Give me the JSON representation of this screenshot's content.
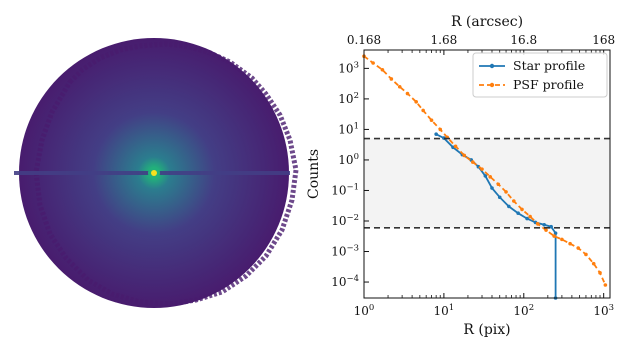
{
  "chart_data": [
    {
      "type": "image",
      "title": "",
      "colormap": "viridis",
      "colors": {
        "outer": "#481c6e",
        "mid": "#433e85",
        "inner": "#2b7d8e",
        "core": "#22b07b",
        "peak": "#f5e11e"
      }
    },
    {
      "type": "line",
      "title": "",
      "xlabel": "R (pix)",
      "ylabel": "Counts",
      "x2label": "R (arcsec)",
      "xscale": "log",
      "yscale": "log",
      "xlim": [
        1,
        1200
      ],
      "ylim": [
        3e-05,
        4000
      ],
      "x_ticks": [
        {
          "value": 1,
          "base": "10",
          "exp": "0"
        },
        {
          "value": 10,
          "base": "10",
          "exp": "1"
        },
        {
          "value": 100,
          "base": "10",
          "exp": "2"
        },
        {
          "value": 1000,
          "base": "10",
          "exp": "3"
        }
      ],
      "y_ticks": [
        {
          "value": 0.0001,
          "base": "10",
          "exp": "−4"
        },
        {
          "value": 0.001,
          "base": "10",
          "exp": "−3"
        },
        {
          "value": 0.01,
          "base": "10",
          "exp": "−2"
        },
        {
          "value": 0.1,
          "base": "10",
          "exp": "−1"
        },
        {
          "value": 1,
          "base": "10",
          "exp": "0"
        },
        {
          "value": 10,
          "base": "10",
          "exp": "1"
        },
        {
          "value": 100,
          "base": "10",
          "exp": "2"
        },
        {
          "value": 1000,
          "base": "10",
          "exp": "3"
        }
      ],
      "x2_ticks": [
        {
          "value": 1,
          "label": "0.168"
        },
        {
          "value": 10,
          "label": "1.68"
        },
        {
          "value": 100,
          "label": "16.8"
        },
        {
          "value": 1000,
          "label": "168"
        }
      ],
      "shaded_band": {
        "ymin": 0.006,
        "ymax": 5,
        "color": "#f3f3f3"
      },
      "hlines": [
        {
          "y": 5,
          "color": "#333333",
          "style": "dashed"
        },
        {
          "y": 0.006,
          "color": "#333333",
          "style": "dashed"
        }
      ],
      "legend_position": "top-right",
      "series": [
        {
          "name": "Star profile",
          "color": "#1f77b4",
          "style": "solid",
          "marker": "dot",
          "x": [
            8,
            10,
            13,
            17,
            22,
            27,
            33,
            40,
            50,
            65,
            85,
            110,
            140,
            180,
            220,
            250,
            250
          ],
          "y": [
            7,
            5.2,
            2.6,
            1.5,
            1.0,
            0.6,
            0.3,
            0.12,
            0.06,
            0.03,
            0.018,
            0.012,
            0.009,
            0.0075,
            0.0065,
            0.004,
            3e-05
          ]
        },
        {
          "name": "PSF profile",
          "color": "#ff7f0e",
          "style": "dashed",
          "marker": "dot",
          "x": [
            1,
            1.3,
            1.7,
            2.2,
            2.8,
            3.5,
            4.5,
            5.5,
            7,
            9,
            11,
            14,
            18,
            23,
            30,
            38,
            48,
            60,
            75,
            95,
            120,
            150,
            190,
            240,
            300,
            380,
            480,
            600,
            750,
            900,
            1050
          ],
          "y": [
            2500,
            1500,
            900,
            450,
            250,
            150,
            80,
            42,
            20,
            10,
            5.5,
            2.8,
            1.4,
            0.85,
            0.5,
            0.28,
            0.16,
            0.09,
            0.045,
            0.024,
            0.014,
            0.008,
            0.005,
            0.0032,
            0.0025,
            0.0018,
            0.0013,
            0.0008,
            0.0004,
            0.0002,
            8e-05
          ]
        }
      ]
    }
  ]
}
